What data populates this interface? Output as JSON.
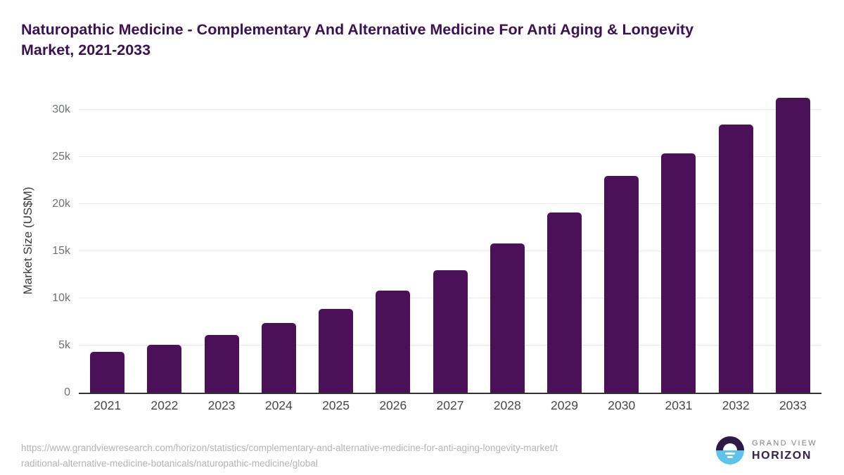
{
  "page": {
    "title_line1": "Naturopathic Medicine - Complementary And Alternative Medicine For Anti Aging & Longevity",
    "title_line2": "Market, 2021-2033"
  },
  "chart_data": {
    "type": "bar",
    "title": "Naturopathic Medicine - Complementary And Alternative Medicine For Anti Aging & Longevity Market, 2021-2033",
    "categories": [
      "2021",
      "2022",
      "2023",
      "2024",
      "2025",
      "2026",
      "2027",
      "2028",
      "2029",
      "2030",
      "2031",
      "2032",
      "2033"
    ],
    "values": [
      4300,
      5100,
      6100,
      7400,
      8900,
      10800,
      13000,
      15800,
      19100,
      23000,
      25400,
      28400,
      31300
    ],
    "xlabel": "",
    "ylabel": "Market Size (US$M)",
    "ylim": [
      0,
      30000
    ],
    "yticks": [
      0,
      5000,
      10000,
      15000,
      20000,
      25000,
      30000
    ],
    "ytick_labels": [
      "0",
      "5k",
      "10k",
      "15k",
      "20k",
      "25k",
      "30k"
    ],
    "grid": true,
    "legend_position": "none",
    "bar_color": "#4a1159"
  },
  "footer": {
    "source_url_line1": "https://www.grandviewresearch.com/horizon/statistics/complementary-and-alternative-medicine-for-anti-aging-longevity-market/t",
    "source_url_line2": "raditional-alternative-medicine-botanicals/naturopathic-medicine/global",
    "logo": {
      "brand_line1": "GRAND VIEW",
      "brand_line2": "HORIZON"
    }
  },
  "colors": {
    "title": "#3c1152",
    "bar": "#4a1159",
    "axis_label": "#3a3a3a",
    "ytick_text": "#6e7276",
    "xtick_text": "#46474a",
    "gridline": "#e9e9e9",
    "baseline": "#333333",
    "footer_text": "#b4b4b4",
    "logo_purple": "#2d1a46",
    "logo_blue": "#5ec3ea",
    "logo_gray": "#808080",
    "logo_dark_purple": "#342052"
  }
}
